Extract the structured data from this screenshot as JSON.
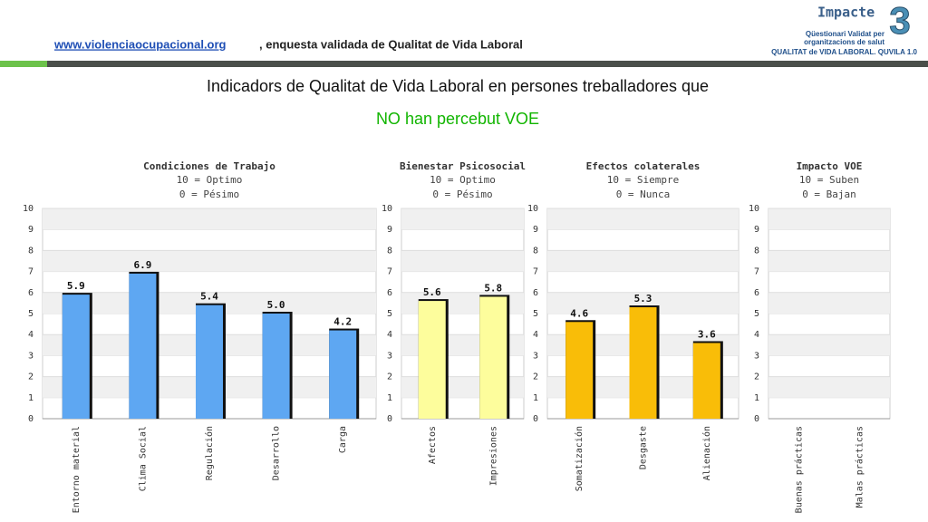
{
  "header": {
    "link": "www.violenciaocupacional.org",
    "text": ", enquesta validada de Qualitat de Vida Laboral",
    "logo_title": "Impacte",
    "logo_number": "3",
    "logo_lines": [
      "Qüestionari Validat per",
      "organitzacions de salut",
      "QUALITAT de VIDA LABORAL. QUVILA 1.0"
    ]
  },
  "title": "Indicadors de Qualitat de Vida Laboral en persones treballadores que",
  "subtitle": "NO han percebut VOE",
  "chart_data": [
    {
      "type": "bar",
      "title": "Condiciones de Trabajo",
      "subtitle": [
        "10 = Optimo",
        "0 = Pésimo"
      ],
      "categories": [
        "Entorno material",
        "Clima Social",
        "Regulación",
        "Desarrollo",
        "Carga"
      ],
      "values": [
        5.9,
        6.9,
        5.4,
        5.0,
        4.2
      ],
      "value_labels": [
        "5.9",
        "6.9",
        "5.4",
        "5.0",
        "4.2"
      ],
      "color": "#5ea7f2",
      "ylim": [
        0,
        10
      ],
      "yticks": [
        0,
        1,
        2,
        3,
        4,
        5,
        6,
        7,
        8,
        9,
        10
      ],
      "grid": true
    },
    {
      "type": "bar",
      "title": "Bienestar Psicosocial",
      "subtitle": [
        "10 = Optimo",
        "0 = Pésimo"
      ],
      "categories": [
        "Afectos",
        "Impresiones"
      ],
      "values": [
        5.6,
        5.8
      ],
      "value_labels": [
        "5.6",
        "5.8"
      ],
      "color": "#fdfd9c",
      "ylim": [
        0,
        10
      ],
      "yticks": [
        0,
        1,
        2,
        3,
        4,
        5,
        6,
        7,
        8,
        9,
        10
      ],
      "grid": true
    },
    {
      "type": "bar",
      "title": "Efectos colaterales",
      "subtitle": [
        "10 = Siempre",
        "0 = Nunca"
      ],
      "categories": [
        "Somatización",
        "Desgaste",
        "Alienación"
      ],
      "values": [
        4.6,
        5.3,
        3.6
      ],
      "value_labels": [
        "4.6",
        "5.3",
        "3.6"
      ],
      "color": "#f9bd08",
      "ylim": [
        0,
        10
      ],
      "yticks": [
        0,
        1,
        2,
        3,
        4,
        5,
        6,
        7,
        8,
        9,
        10
      ],
      "grid": true
    },
    {
      "type": "bar",
      "title": "Impacto VOE",
      "subtitle": [
        "10 = Suben",
        "0 = Bajan"
      ],
      "categories": [
        "Buenas prácticas",
        "Malas prácticas"
      ],
      "values": [
        null,
        null
      ],
      "color": "#5ea7f2",
      "ylim": [
        0,
        10
      ],
      "yticks": [
        0,
        1,
        2,
        3,
        4,
        5,
        6,
        7,
        8,
        9,
        10
      ],
      "grid": true
    }
  ]
}
